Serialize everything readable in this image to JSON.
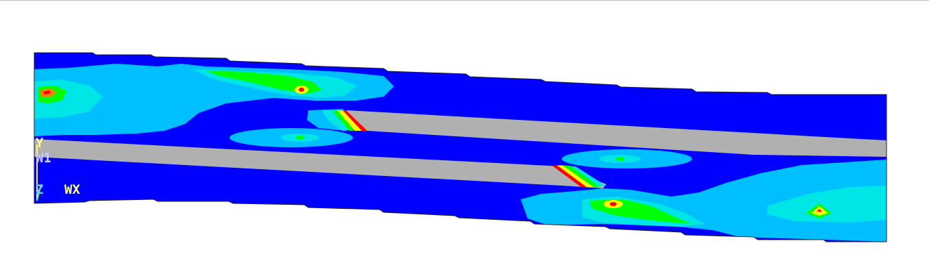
{
  "colors": {
    "background": "#ffffff",
    "outline": "#000000",
    "contour_1_dark_blue": "#0000ff",
    "contour_2_sky_blue": "#00bfff",
    "contour_3_light_cyan": "#00e5e5",
    "contour_4_green": "#00ff00",
    "contour_5_yellow": "#ffff00",
    "contour_6_orange": "#ff8000",
    "contour_7_red": "#ff0000",
    "crack_gray": "#b0b0b0"
  },
  "triad": {
    "label_y": "Y",
    "label_w1": "W1",
    "label_z": "Z",
    "label_wx": "WX"
  }
}
